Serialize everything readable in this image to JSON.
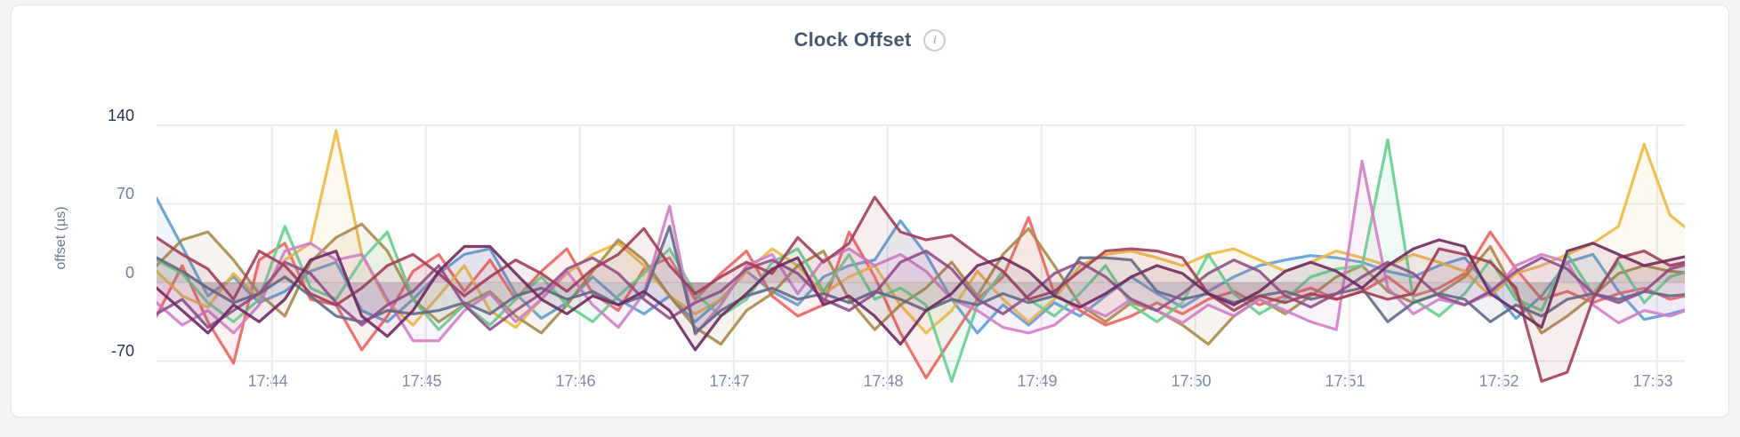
{
  "page": {
    "title": "Clock Offset",
    "info_icon_glyph": "i"
  },
  "chart_data": {
    "type": "line",
    "title": "Clock Offset",
    "xlabel": "",
    "ylabel": "offset (µs)",
    "ylim": [
      -70,
      140
    ],
    "grid": true,
    "legend": "none",
    "x_start_time": "17:43:15",
    "x_interval_seconds": 10,
    "xticks": [
      "17:44",
      "17:45",
      "17:46",
      "17:47",
      "17:48",
      "17:49",
      "17:50",
      "17:51",
      "17:52",
      "17:53"
    ],
    "yticks": [
      {
        "label": "140",
        "value": 140,
        "emphasis": true
      },
      {
        "label": "70",
        "value": 70,
        "emphasis": false
      },
      {
        "label": "0",
        "value": 0,
        "emphasis": false
      },
      {
        "label": "-70",
        "value": -70,
        "emphasis": true
      }
    ],
    "gridline_color": "#ebebec",
    "series": [
      {
        "name": "series-01",
        "color": "#5C9DD6",
        "values": [
          75,
          32,
          -12,
          5,
          -18,
          -8,
          10,
          18,
          -25,
          -35,
          -15,
          8,
          25,
          30,
          -10,
          -32,
          -18,
          5,
          -15,
          -28,
          -12,
          -35,
          -15,
          10,
          -8,
          -20,
          5,
          15,
          20,
          55,
          25,
          -15,
          -45,
          -20,
          -38,
          -18,
          -30,
          -12,
          5,
          -10,
          -22,
          -8,
          5,
          15,
          20,
          24,
          22,
          18,
          10,
          5,
          15,
          22,
          -5,
          -32,
          -12,
          18,
          25,
          -8,
          -33,
          -28,
          -22
        ]
      },
      {
        "name": "series-02",
        "color": "#EA6460",
        "values": [
          -30,
          15,
          -35,
          -72,
          20,
          35,
          -15,
          -20,
          -60,
          -30,
          10,
          25,
          -8,
          20,
          -15,
          10,
          30,
          -10,
          -25,
          12,
          22,
          -15,
          8,
          28,
          -12,
          -30,
          -20,
          45,
          5,
          -45,
          -85,
          -50,
          -15,
          5,
          58,
          -10,
          -25,
          -38,
          -30,
          -18,
          -28,
          -15,
          -8,
          -20,
          -12,
          -5,
          -15,
          -8,
          5,
          -12,
          -5,
          8,
          45,
          12,
          -15,
          -8,
          -18,
          -10,
          -5,
          -15,
          -10
        ]
      },
      {
        "name": "series-03",
        "color": "#EDB845",
        "values": [
          10,
          -12,
          -22,
          8,
          -15,
          20,
          35,
          135,
          25,
          -18,
          -38,
          -12,
          15,
          -25,
          -40,
          -15,
          8,
          25,
          35,
          15,
          -12,
          -28,
          -15,
          10,
          30,
          15,
          -10,
          5,
          15,
          -20,
          -45,
          -25,
          10,
          -15,
          -35,
          -15,
          15,
          25,
          28,
          22,
          15,
          25,
          30,
          20,
          10,
          18,
          28,
          22,
          15,
          25,
          18,
          10,
          -12,
          8,
          15,
          25,
          35,
          50,
          123,
          60,
          42
        ]
      },
      {
        "name": "series-04",
        "color": "#A98A4B",
        "values": [
          15,
          38,
          45,
          20,
          -10,
          -30,
          18,
          40,
          52,
          28,
          -15,
          -35,
          -20,
          -8,
          -30,
          -45,
          -20,
          10,
          38,
          20,
          -12,
          -40,
          -55,
          -25,
          -10,
          15,
          28,
          -15,
          -42,
          -20,
          -5,
          18,
          -12,
          25,
          48,
          15,
          -20,
          -35,
          -18,
          -25,
          -38,
          -55,
          -30,
          -15,
          -28,
          -12,
          5,
          15,
          -8,
          -18,
          -10,
          5,
          32,
          -10,
          -45,
          -30,
          -12,
          8,
          15,
          10,
          8
        ]
      },
      {
        "name": "series-05",
        "color": "#67CE8C",
        "values": [
          20,
          8,
          -18,
          -35,
          -15,
          50,
          -5,
          -15,
          20,
          45,
          -15,
          -42,
          -20,
          -38,
          -15,
          5,
          -20,
          -35,
          -12,
          8,
          30,
          -10,
          -30,
          -15,
          18,
          30,
          -8,
          25,
          -15,
          -5,
          -20,
          -88,
          -20,
          10,
          -15,
          -30,
          -10,
          15,
          -20,
          -35,
          -18,
          25,
          -10,
          -28,
          -15,
          5,
          12,
          15,
          127,
          -15,
          -30,
          -10,
          20,
          -15,
          -25,
          25,
          -10,
          18,
          -18,
          5,
          12
        ]
      },
      {
        "name": "series-06",
        "color": "#D07EC6",
        "values": [
          -18,
          -38,
          -25,
          -45,
          -20,
          28,
          35,
          20,
          25,
          -15,
          -52,
          -52,
          -25,
          -10,
          -35,
          -15,
          10,
          -20,
          -40,
          -10,
          68,
          -46,
          -20,
          15,
          25,
          -10,
          20,
          30,
          15,
          25,
          10,
          -15,
          -25,
          -40,
          -45,
          -38,
          -20,
          -30,
          -15,
          -25,
          -36,
          -20,
          -30,
          -15,
          -25,
          -35,
          -42,
          108,
          -5,
          -28,
          -15,
          -20,
          -10,
          15,
          25,
          18,
          -20,
          -36,
          -25,
          -30,
          -22
        ]
      },
      {
        "name": "series-07",
        "color": "#5F6C87",
        "values": [
          22,
          10,
          -5,
          -18,
          -10,
          5,
          -12,
          -30,
          -35,
          -25,
          -28,
          -25,
          -18,
          -28,
          -12,
          -5,
          -15,
          -8,
          -20,
          -12,
          50,
          -45,
          -25,
          -12,
          -5,
          -15,
          -10,
          -18,
          -8,
          -15,
          -25,
          -15,
          -20,
          -10,
          -18,
          -12,
          22,
          22,
          20,
          -8,
          -15,
          -10,
          -18,
          -12,
          -8,
          -15,
          -10,
          -5,
          -35,
          -18,
          -10,
          -15,
          -35,
          -20,
          -30,
          -15,
          -10,
          -15,
          -8,
          -12,
          -10
        ]
      },
      {
        "name": "series-08",
        "color": "#90508C",
        "values": [
          -28,
          -15,
          -40,
          -25,
          -10,
          18,
          8,
          -18,
          -38,
          -20,
          -8,
          15,
          -20,
          -42,
          -25,
          -10,
          12,
          22,
          8,
          -15,
          -32,
          -18,
          -8,
          12,
          20,
          8,
          -15,
          -25,
          -10,
          18,
          28,
          12,
          -15,
          -28,
          -12,
          8,
          18,
          5,
          -15,
          -25,
          -10,
          8,
          20,
          10,
          -12,
          -22,
          -10,
          5,
          18,
          8,
          -12,
          -20,
          -8,
          10,
          22,
          12,
          -10,
          -18,
          -8,
          12,
          18
        ]
      },
      {
        "name": "series-09",
        "color": "#A23F58",
        "values": [
          40,
          25,
          12,
          -15,
          28,
          15,
          -10,
          -20,
          -5,
          15,
          25,
          8,
          -12,
          5,
          20,
          8,
          -8,
          12,
          25,
          48,
          15,
          -10,
          5,
          18,
          8,
          40,
          18,
          35,
          76,
          45,
          38,
          42,
          25,
          10,
          -15,
          -8,
          10,
          28,
          30,
          28,
          22,
          -10,
          -25,
          -12,
          -18,
          -10,
          -15,
          -8,
          -15,
          -10,
          30,
          25,
          18,
          -5,
          -88,
          -80,
          -15,
          22,
          28,
          15,
          20
        ]
      },
      {
        "name": "series-10",
        "color": "#6E2A5F",
        "values": [
          -5,
          -25,
          -45,
          -20,
          -35,
          -15,
          20,
          28,
          -30,
          -48,
          -25,
          10,
          32,
          32,
          8,
          -15,
          -28,
          -12,
          -20,
          -8,
          -25,
          -60,
          -30,
          -10,
          12,
          22,
          -20,
          -12,
          -30,
          -55,
          -25,
          -10,
          15,
          22,
          10,
          -12,
          -22,
          -10,
          5,
          15,
          8,
          -10,
          -20,
          -8,
          10,
          18,
          10,
          -5,
          15,
          30,
          38,
          32,
          -10,
          -25,
          -40,
          28,
          35,
          25,
          15,
          20,
          25
        ]
      }
    ]
  }
}
